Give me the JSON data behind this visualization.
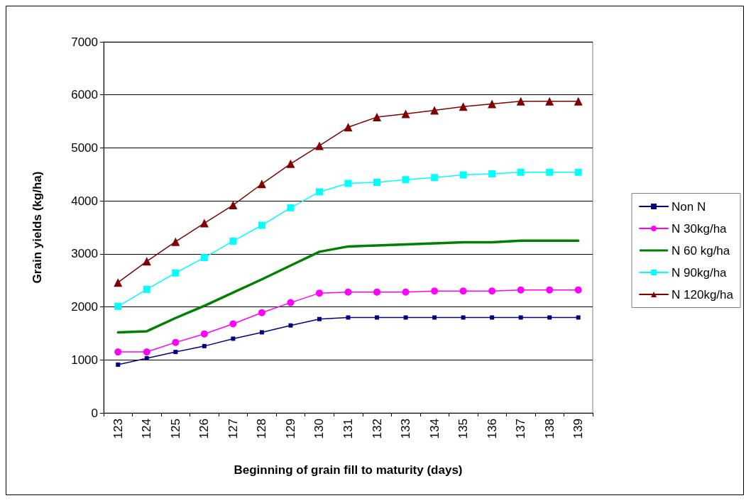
{
  "chart_data": {
    "type": "line",
    "xlabel": "Beginning of grain fill to maturity (days)",
    "ylabel": "Grain yields (kg/ha)",
    "categories": [
      "123",
      "124",
      "125",
      "126",
      "127",
      "128",
      "129",
      "130",
      "131",
      "132",
      "133",
      "134",
      "135",
      "136",
      "137",
      "138",
      "139"
    ],
    "ylim": [
      0,
      7000
    ],
    "yticks": [
      0,
      1000,
      2000,
      3000,
      4000,
      5000,
      6000,
      7000
    ],
    "grid": "y",
    "legend": "right",
    "series": [
      {
        "name": "Non N",
        "color": "#000080",
        "marker": "square",
        "values": [
          910,
          1030,
          1150,
          1260,
          1400,
          1520,
          1650,
          1770,
          1800,
          1800,
          1800,
          1800,
          1800,
          1800,
          1800,
          1800,
          1800
        ]
      },
      {
        "name": "N 30kg/ha",
        "color": "#ff00ff",
        "marker": "circle",
        "values": [
          1150,
          1150,
          1330,
          1490,
          1680,
          1890,
          2080,
          2260,
          2280,
          2280,
          2280,
          2300,
          2300,
          2300,
          2320,
          2320,
          2320
        ]
      },
      {
        "name": "N 60 kg/ha",
        "color": "#008000",
        "marker": "none",
        "values": [
          1520,
          1540,
          1790,
          2020,
          2270,
          2520,
          2780,
          3040,
          3140,
          3160,
          3180,
          3200,
          3220,
          3220,
          3250,
          3250,
          3250
        ]
      },
      {
        "name": "N 90kg/ha",
        "color": "#00ffff",
        "marker": "square",
        "values": [
          2010,
          2330,
          2640,
          2930,
          3240,
          3540,
          3870,
          4170,
          4330,
          4350,
          4400,
          4440,
          4490,
          4510,
          4540,
          4540,
          4540
        ]
      },
      {
        "name": "N 120kg/ha",
        "color": "#800000",
        "marker": "triangle",
        "values": [
          2460,
          2860,
          3230,
          3580,
          3920,
          4320,
          4700,
          5040,
          5390,
          5580,
          5640,
          5710,
          5780,
          5830,
          5880,
          5880,
          5880
        ]
      }
    ]
  }
}
